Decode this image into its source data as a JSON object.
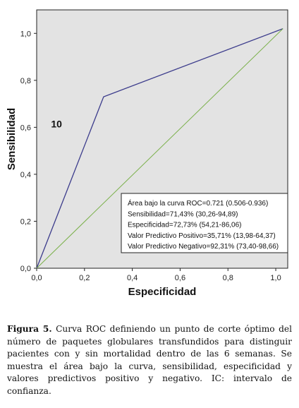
{
  "chart_data": {
    "type": "line",
    "xlabel": "Especificidad",
    "ylabel": "Sensibilidad",
    "xlim": [
      0,
      1.05
    ],
    "ylim": [
      0,
      1.1
    ],
    "xticks": [
      "0,0",
      "0,2",
      "0,4",
      "0,6",
      "0,8",
      "1,0"
    ],
    "yticks": [
      "0,0",
      "0,2",
      "0,4",
      "0,6",
      "0,8",
      "1,0"
    ],
    "grid": false,
    "series": [
      {
        "x": [
          0.0,
          0.28,
          1.03
        ],
        "y": [
          0.0,
          0.73,
          1.02
        ],
        "color": "#3c3c8c"
      },
      {
        "x": [
          0.0,
          1.03
        ],
        "y": [
          0.0,
          1.02
        ],
        "color": "#7ab04a"
      }
    ],
    "annotations": [
      {
        "text": "10",
        "x": 0.06,
        "y": 0.6,
        "bold": true
      }
    ],
    "stats_box": {
      "lines": [
        "Área bajo la curva ROC=0.721 (0.506-0.936)",
        "Sensibilidad=71,43% (30,26-94,89)",
        "Especificidad=72,73% (54,21-86,06)",
        "Valor Predictivo Positivo=35,71% (13,98-64,37)",
        "Valor Predictivo Negativo=92,31% (73,40-98,66)"
      ]
    },
    "plot_background": "#e3e3e3"
  },
  "caption": {
    "label": "Figura 5.",
    "text": " Curva  ROC definiendo un punto de corte óptimo del número de paquetes globulares transfundidos  para distinguir pacientes con y sin mortalidad dentro de las 6 semanas. Se muestra el área bajo la curva, sensibilidad, especificidad y valores predictivos positivo y negativo. IC: intervalo de confianza."
  }
}
